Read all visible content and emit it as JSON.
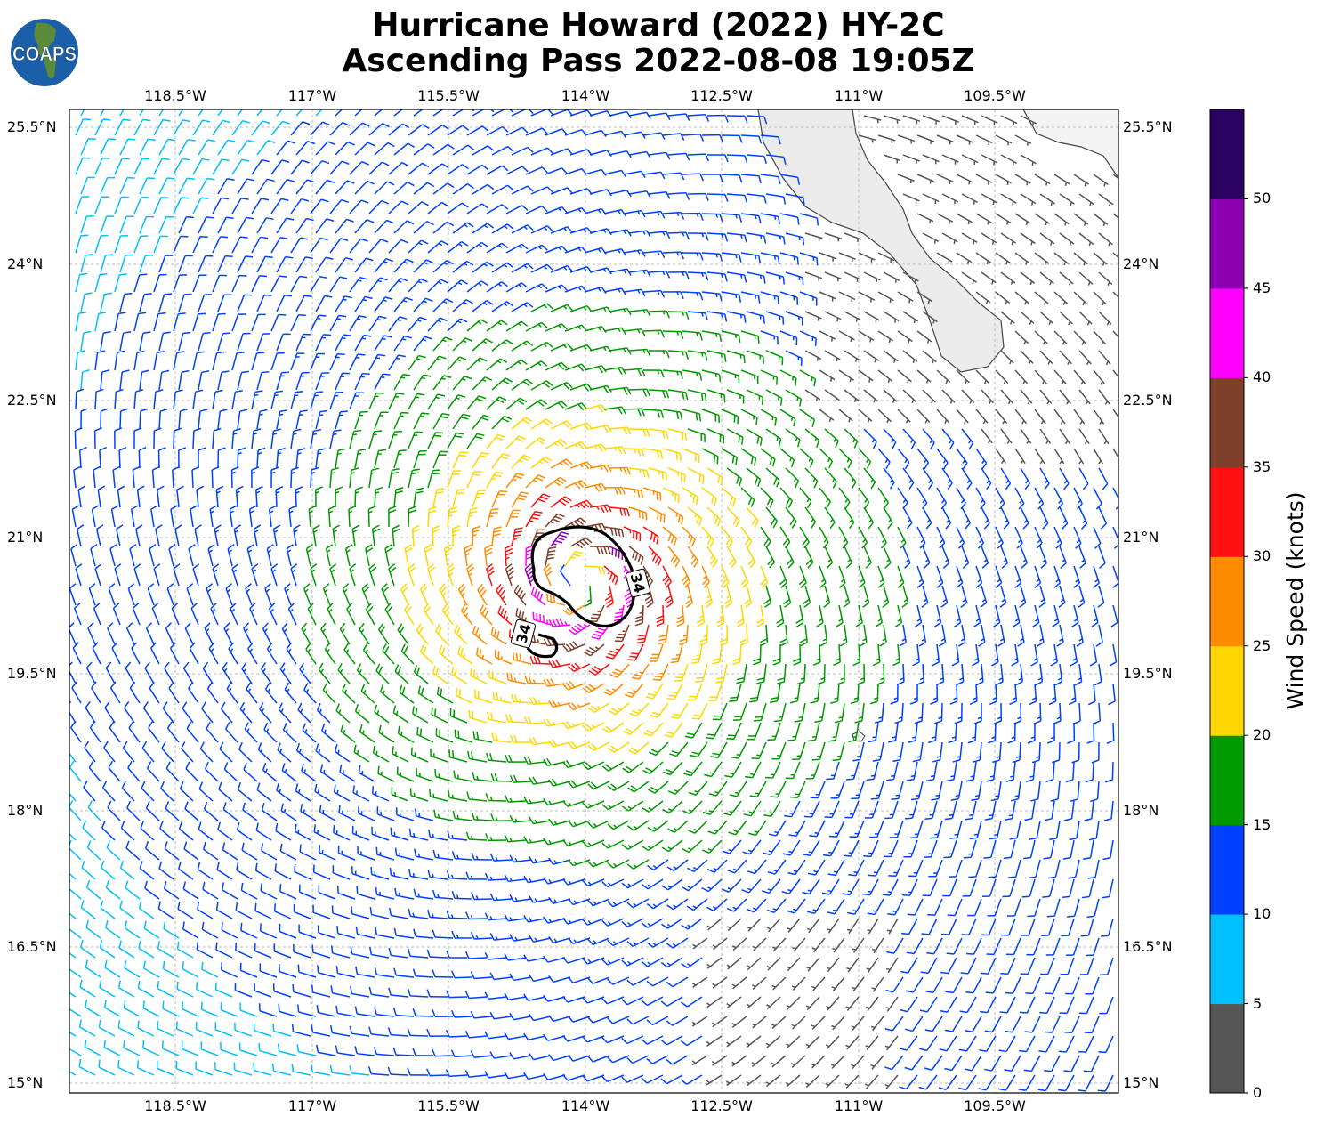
{
  "title": {
    "line1": "Hurricane Howard (2022) HY-2C",
    "line2": "Ascending Pass 2022-08-08 19:05Z"
  },
  "logo": {
    "text": "COAPS"
  },
  "map": {
    "lon_labels": [
      "118.5°W",
      "117°W",
      "115.5°W",
      "114°W",
      "112.5°W",
      "111°W",
      "109.5°W"
    ],
    "lat_labels": [
      "25.5°N",
      "24°N",
      "22.5°N",
      "21°N",
      "19.5°N",
      "18°N",
      "16.5°N",
      "15°N"
    ],
    "gridlines": true,
    "contour_label": "34",
    "contour_color": "#000000",
    "land_color": "#e8e8e8"
  },
  "colorbar": {
    "label": "Wind Speed (knots)",
    "ticks": [
      "0",
      "5",
      "10",
      "15",
      "20",
      "25",
      "30",
      "35",
      "40",
      "45",
      "50"
    ],
    "colors": [
      "#555555",
      "#00bfff",
      "#0040ff",
      "#009900",
      "#ffd700",
      "#ff8c00",
      "#ff1010",
      "#7f3f2a",
      "#ff00ff",
      "#8b00b0",
      "#2a0060"
    ]
  }
}
